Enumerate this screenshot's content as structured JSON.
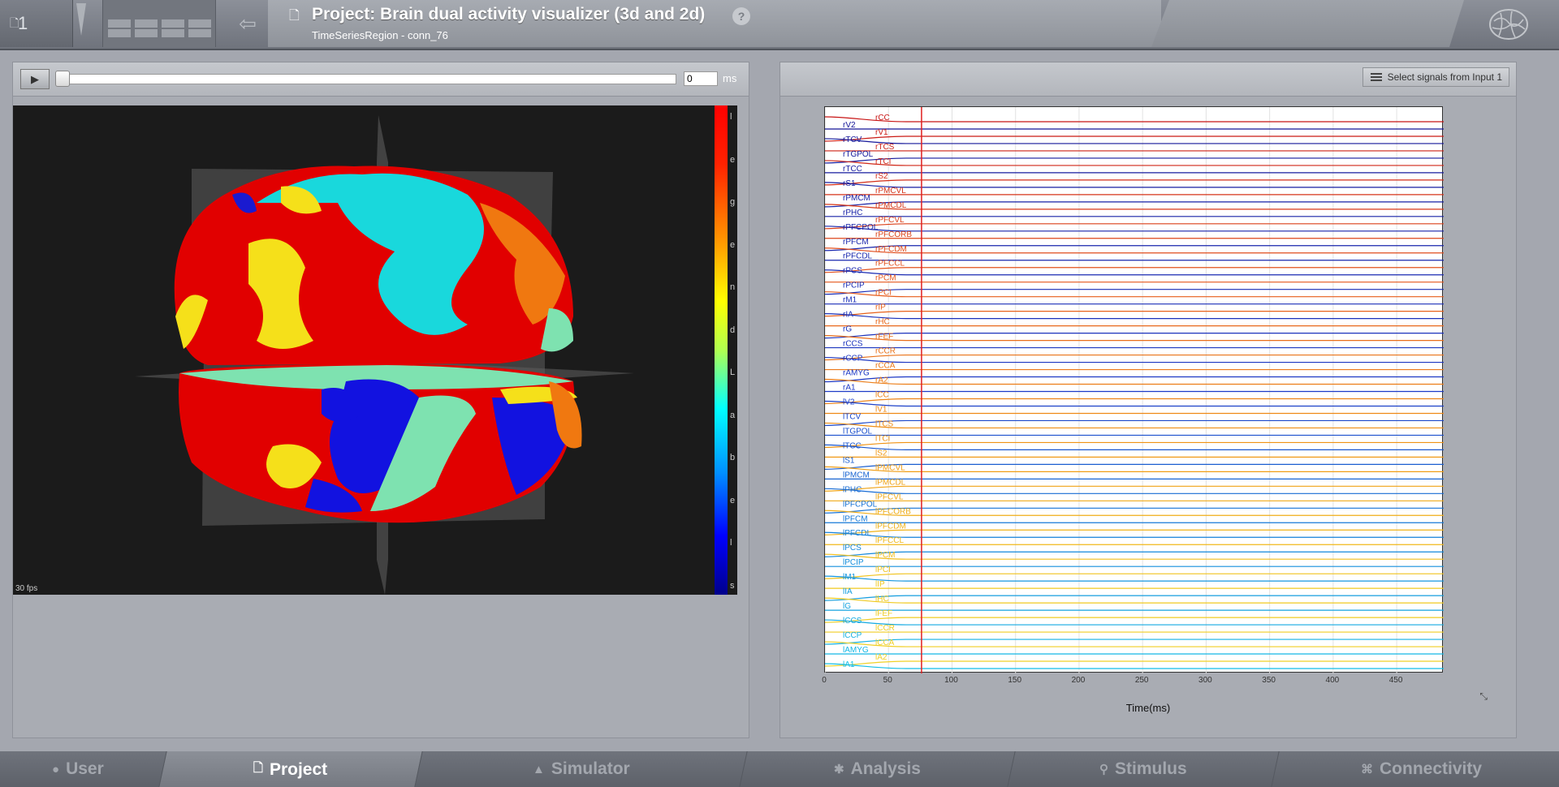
{
  "header": {
    "project_count": "1",
    "title": "Project: Brain dual activity visualizer (3d and 2d)",
    "subtitle": "TimeSeriesRegion - conn_76",
    "help_label": "?"
  },
  "left_panel": {
    "play_label": "▶",
    "time_value": "0",
    "time_unit": "ms",
    "fps": "30 fps",
    "colorbar_letters": [
      "l",
      "e",
      "g",
      "e",
      "n",
      "d",
      "L",
      "a",
      "b",
      "e",
      "l",
      "s"
    ]
  },
  "right_panel": {
    "select_signals_label": "Select signals from Input 1",
    "current_time_marker": 76
  },
  "chart_data": {
    "type": "line",
    "xlabel": "Time(ms)",
    "xlim": [
      0,
      487
    ],
    "x_ticks": [
      "0",
      "50",
      "100",
      "150",
      "200",
      "250",
      "300",
      "350",
      "400",
      "450"
    ],
    "series_labels_left": [
      "rV2",
      "rTCV",
      "rTGPOL",
      "rTCC",
      "rS1",
      "rPMCM",
      "rPHC",
      "rPFCPOL",
      "rPFCM",
      "rPFCDL",
      "rPCS",
      "rPCIP",
      "rM1",
      "rIA",
      "rG",
      "rCCS",
      "rCCP",
      "rAMYG",
      "rA1",
      "lV2",
      "lTCV",
      "lTGPOL",
      "lTCC",
      "lS1",
      "lPMCM",
      "lPHC",
      "lPFCPOL",
      "lPFCM",
      "lPFCDL",
      "lPCS",
      "lPCIP",
      "lM1",
      "lIA",
      "lG",
      "lCCS",
      "lCCP",
      "lAMYG",
      "lA1"
    ],
    "series_labels_right": [
      "rCC",
      "rV1",
      "rTCS",
      "rTCI",
      "rS2",
      "rPMCVL",
      "rPMCDL",
      "rPFCVL",
      "rPFCORB",
      "rPFCDM",
      "rPFCCL",
      "rPCM",
      "rPCI",
      "rIP",
      "rHC",
      "rFEF",
      "rCCR",
      "rCCA",
      "rA2",
      "lCC",
      "lV1",
      "lTCS",
      "lTCI",
      "lS2",
      "lPMCVL",
      "lPMCDL",
      "lPFCVL",
      "lPFCORB",
      "lPFCDM",
      "lPFCCL",
      "lPCM",
      "lPCI",
      "lIP",
      "lHC",
      "lFEF",
      "lCCR",
      "lCCA",
      "lA2"
    ]
  },
  "bottom_tabs": [
    {
      "label": "User",
      "icon": "user-icon"
    },
    {
      "label": "Project",
      "icon": "document-icon"
    },
    {
      "label": "Simulator",
      "icon": "rocket-icon"
    },
    {
      "label": "Analysis",
      "icon": "gear-icon"
    },
    {
      "label": "Stimulus",
      "icon": "pin-icon"
    },
    {
      "label": "Connectivity",
      "icon": "network-icon"
    }
  ],
  "colors": {
    "marker": "#e02020",
    "left_label": "#1a3cc8",
    "right_label": "#e24a1a"
  }
}
